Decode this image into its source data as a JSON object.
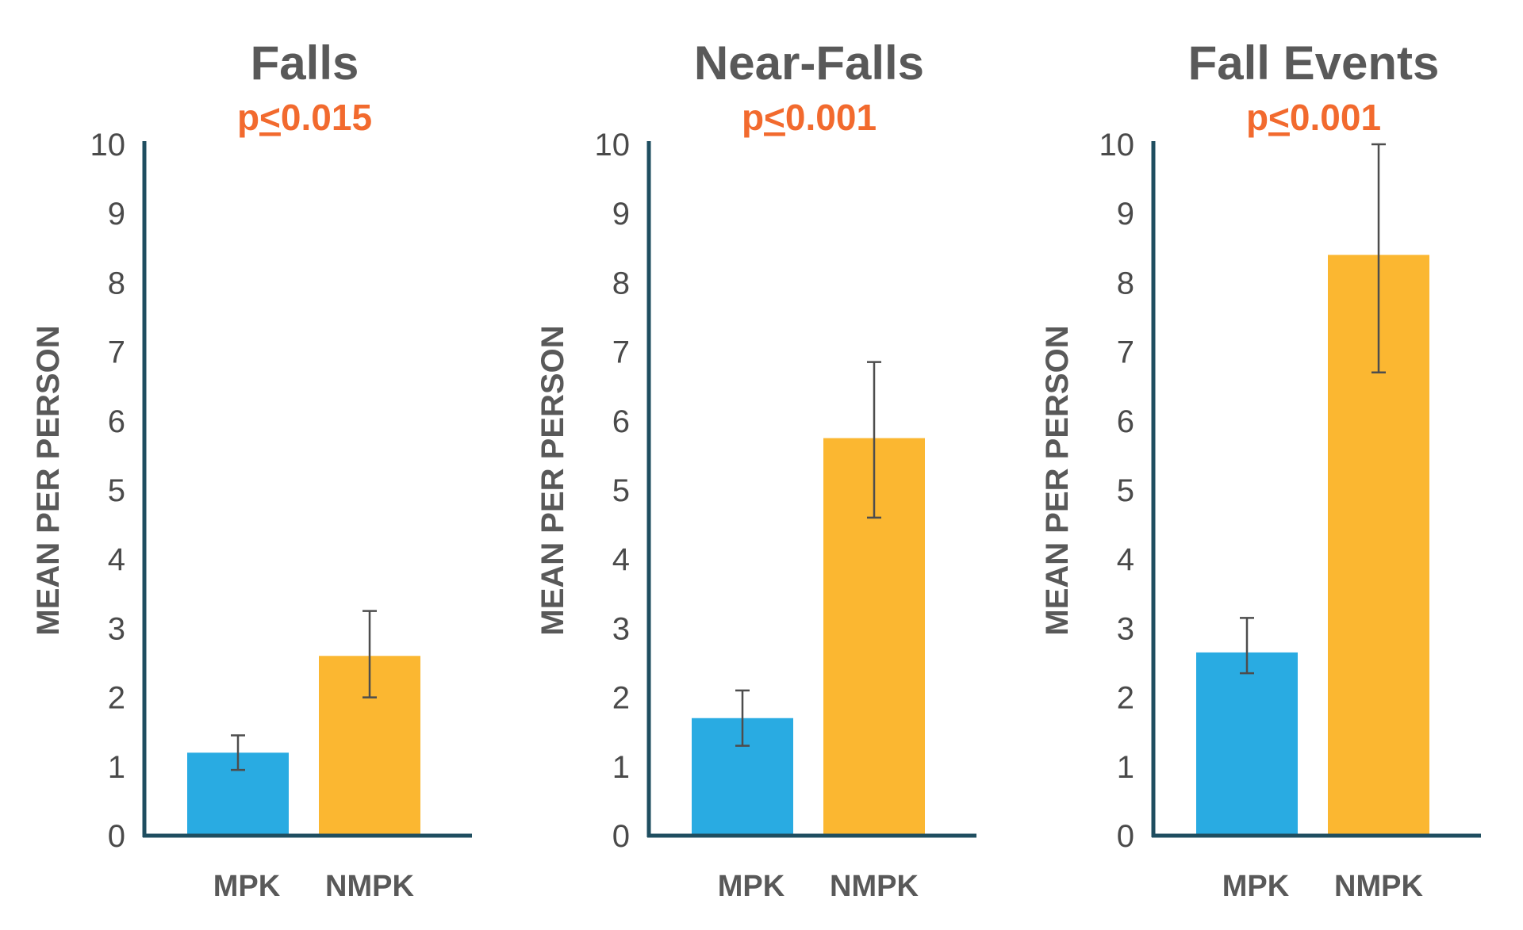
{
  "chart_data": [
    {
      "type": "bar",
      "title": "Falls",
      "subtitle": "p<0.015",
      "ylabel": "MEAN PER PERSON",
      "xlabel": "",
      "categories": [
        "MPK",
        "NMPK"
      ],
      "values": [
        1.2,
        2.6
      ],
      "error_low": [
        0.95,
        2.0
      ],
      "error_high": [
        1.45,
        3.25
      ],
      "ylim": [
        0,
        10
      ],
      "yticks": [
        "0",
        "1",
        "2",
        "3",
        "4",
        "5",
        "6",
        "7",
        "8",
        "9",
        "10"
      ],
      "colors": [
        "#29abe2",
        "#fbb731"
      ],
      "grid": false
    },
    {
      "type": "bar",
      "title": "Near-Falls",
      "subtitle": "p<0.001",
      "ylabel": "MEAN PER PERSON",
      "xlabel": "",
      "categories": [
        "MPK",
        "NMPK"
      ],
      "values": [
        1.7,
        5.75
      ],
      "error_low": [
        1.3,
        4.6
      ],
      "error_high": [
        2.1,
        6.85
      ],
      "ylim": [
        0,
        10
      ],
      "yticks": [
        "0",
        "1",
        "2",
        "3",
        "4",
        "5",
        "6",
        "7",
        "8",
        "9",
        "10"
      ],
      "colors": [
        "#29abe2",
        "#fbb731"
      ],
      "grid": false
    },
    {
      "type": "bar",
      "title": "Fall Events",
      "subtitle": "p<0.001",
      "ylabel": "MEAN PER PERSON",
      "xlabel": "",
      "categories": [
        "MPK",
        "NMPK"
      ],
      "values": [
        2.65,
        8.4
      ],
      "error_low": [
        2.35,
        6.7
      ],
      "error_high": [
        3.15,
        10.0
      ],
      "ylim": [
        0,
        10
      ],
      "yticks": [
        "0",
        "1",
        "2",
        "3",
        "4",
        "5",
        "6",
        "7",
        "8",
        "9",
        "10"
      ],
      "colors": [
        "#29abe2",
        "#fbb731"
      ],
      "grid": false
    }
  ]
}
